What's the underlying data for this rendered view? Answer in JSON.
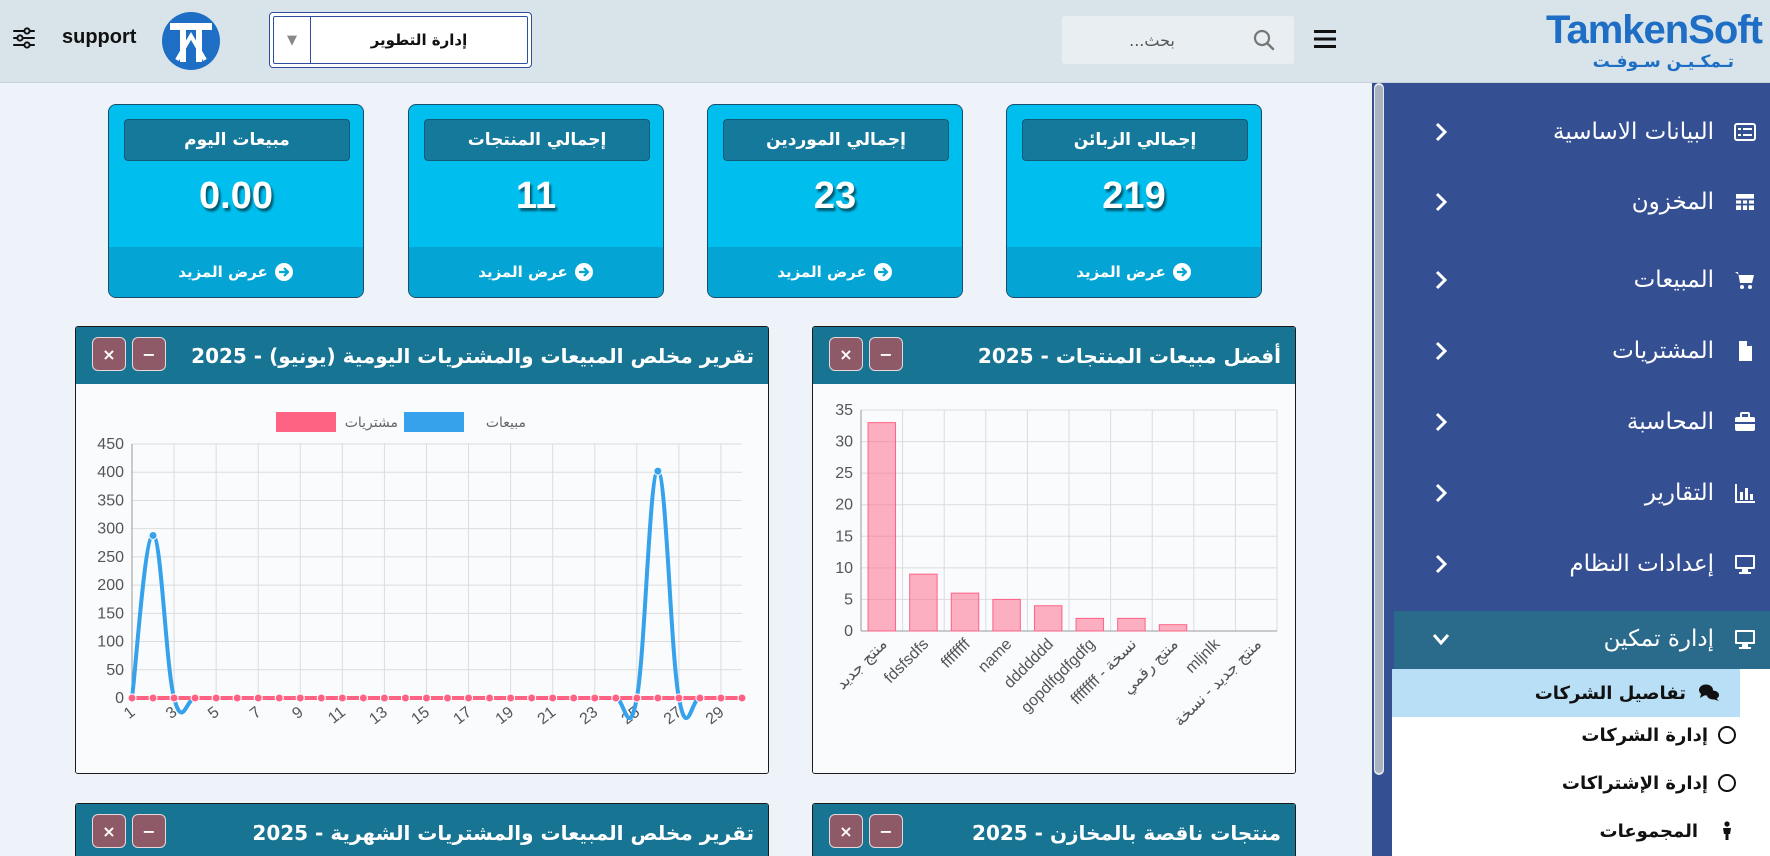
{
  "header": {
    "user_name": "support",
    "company_select": "إدارة التطوير",
    "search_placeholder": "...بحث",
    "logo_main": "TamkenSoft",
    "logo_sub": "تـمكـيـن سـوفـت"
  },
  "sidebar": {
    "items": [
      {
        "label": "البيانات الاساسية"
      },
      {
        "label": "المخزون"
      },
      {
        "label": "المبيعات"
      },
      {
        "label": "المشتريات"
      },
      {
        "label": "المحاسبة"
      },
      {
        "label": "التقارير"
      },
      {
        "label": "إعدادات النظام"
      },
      {
        "label": "إدارة تمكين"
      }
    ],
    "sub_items": [
      {
        "label": "تفاصيل الشركات"
      },
      {
        "label": "إدارة الشركات"
      },
      {
        "label": "إدارة الإشتراكات"
      },
      {
        "label": "المجموعات"
      }
    ]
  },
  "cards": [
    {
      "title": "إجمالي الزبائن",
      "value": "219",
      "more": "عرض المزيد"
    },
    {
      "title": "إجمالي الموردين",
      "value": "23",
      "more": "عرض المزيد"
    },
    {
      "title": "إجمالي المنتجات",
      "value": "11",
      "more": "عرض المزيد"
    },
    {
      "title": "مبيعات اليوم",
      "value": "0.00",
      "more": "عرض المزيد"
    }
  ],
  "panels": {
    "top_products_title": "أفضل مبيعات المنتجات - 2025",
    "daily_title": "تقرير مخلص المبيعات والمشتريات اليومية (يونيو) - 2025",
    "shortage_title": "منتجات ناقصة بالمخازن - 2025",
    "monthly_title": "تقرير مخلص المبيعات والمشتريات الشهرية - 2025",
    "close_symbol": "×",
    "minimize_symbol": "−"
  },
  "colors": {
    "sidebar": "#354f93",
    "card": "#00bfef",
    "panel_header": "#177492",
    "sales": "#36a2eb",
    "purchases": "#ff6384"
  },
  "chart_data": [
    {
      "type": "bar",
      "title": "أفضل مبيعات المنتجات - 2025",
      "categories": [
        "منتج جديد",
        "fdsfsdfs",
        "ffffffff",
        "name",
        "ddddddd",
        "gopdlfgdfgdfg",
        "ffffffff - نسخة",
        "منتج رقمي",
        "mljnlk",
        "منتج جديد - نسخة"
      ],
      "values": [
        33,
        9,
        6,
        5,
        4,
        2,
        2,
        1,
        0,
        0
      ],
      "ylim": [
        0,
        35
      ],
      "yticks": [
        0,
        5,
        10,
        15,
        20,
        25,
        30,
        35
      ],
      "grid": true,
      "color": "#ff6384"
    },
    {
      "type": "line",
      "title": "تقرير مخلص المبيعات والمشتريات اليومية (يونيو) - 2025",
      "x": [
        1,
        2,
        3,
        4,
        5,
        6,
        7,
        8,
        9,
        10,
        11,
        12,
        13,
        14,
        15,
        16,
        17,
        18,
        19,
        20,
        21,
        22,
        23,
        24,
        25,
        26,
        27,
        28,
        29,
        30
      ],
      "xticks": [
        1,
        3,
        5,
        7,
        9,
        11,
        13,
        15,
        17,
        19,
        21,
        23,
        25,
        27,
        29
      ],
      "series": [
        {
          "name": "مبيعات",
          "color": "#36a2eb",
          "values": [
            0,
            288,
            0,
            0,
            0,
            0,
            0,
            0,
            0,
            0,
            0,
            0,
            0,
            0,
            0,
            0,
            0,
            0,
            0,
            0,
            0,
            0,
            0,
            0,
            0,
            402,
            0,
            0,
            0,
            0
          ]
        },
        {
          "name": "مشتريات",
          "color": "#ff6384",
          "values": [
            0,
            0,
            0,
            0,
            0,
            0,
            0,
            0,
            0,
            0,
            0,
            0,
            0,
            0,
            0,
            0,
            0,
            0,
            0,
            0,
            0,
            0,
            0,
            0,
            0,
            0,
            0,
            0,
            0,
            0
          ]
        }
      ],
      "ylim": [
        0,
        450
      ],
      "yticks": [
        0,
        50,
        100,
        150,
        200,
        250,
        300,
        350,
        400,
        450
      ],
      "legend": "top",
      "grid": true
    }
  ]
}
